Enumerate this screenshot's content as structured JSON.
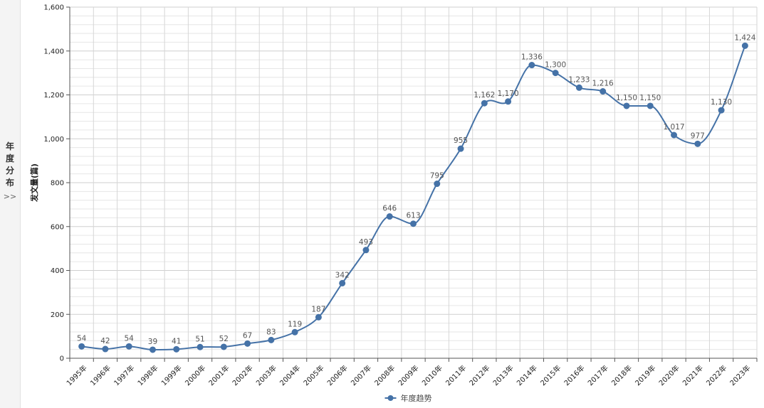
{
  "side_panel": {
    "title_chars": [
      "年",
      "度",
      "分",
      "布"
    ],
    "expand_glyph": ">>"
  },
  "chart_data": {
    "type": "line",
    "title": "",
    "xlabel": "",
    "ylabel": "发文量(篇)",
    "categories": [
      "1995年",
      "1996年",
      "1997年",
      "1998年",
      "1999年",
      "2000年",
      "2001年",
      "2002年",
      "2003年",
      "2004年",
      "2005年",
      "2006年",
      "2007年",
      "2008年",
      "2009年",
      "2010年",
      "2011年",
      "2012年",
      "2013年",
      "2014年",
      "2015年",
      "2016年",
      "2017年",
      "2018年",
      "2019年",
      "2020年",
      "2021年",
      "2022年",
      "2023年"
    ],
    "series": [
      {
        "name": "年度趋势",
        "color": "#4572A7",
        "values": [
          54,
          42,
          54,
          39,
          41,
          51,
          52,
          67,
          83,
          119,
          187,
          342,
          493,
          646,
          613,
          795,
          955,
          1162,
          1170,
          1336,
          1300,
          1233,
          1216,
          1150,
          1150,
          1017,
          977,
          1130,
          1424
        ]
      }
    ],
    "ylim": [
      0,
      1600
    ],
    "yticks": [
      0,
      200,
      400,
      600,
      800,
      1000,
      1200,
      1400,
      1600
    ],
    "ytick_labels": [
      "0",
      "200",
      "400",
      "600",
      "800",
      "1,000",
      "1,200",
      "1,400",
      "1,600"
    ],
    "data_labels": [
      "54",
      "42",
      "54",
      "39",
      "41",
      "51",
      "52",
      "67",
      "83",
      "119",
      "187",
      "342",
      "493",
      "646",
      "613",
      "795",
      "955",
      "1,162",
      "1,170",
      "1,336",
      "1,300",
      "1,233",
      "1,216",
      "1,150",
      "1,150",
      "1,017",
      "977",
      "1,130",
      "1,424"
    ],
    "grid": true,
    "legend_position": "bottom-center",
    "smooth": true
  }
}
